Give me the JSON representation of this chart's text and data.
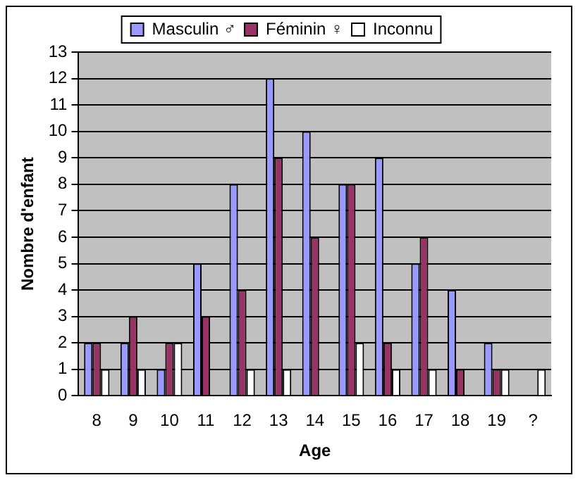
{
  "chart_data": {
    "type": "bar",
    "xlabel": "Age",
    "ylabel": "Nombre d'enfant",
    "categories": [
      "8",
      "9",
      "10",
      "11",
      "12",
      "13",
      "14",
      "15",
      "16",
      "17",
      "18",
      "19",
      "?"
    ],
    "series": [
      {
        "name": "Masculin ♂",
        "color": "#9999ff",
        "values": [
          2,
          2,
          1,
          5,
          8,
          12,
          10,
          8,
          9,
          5,
          4,
          2,
          0
        ]
      },
      {
        "name": "Féminin ♀",
        "color": "#993366",
        "values": [
          2,
          3,
          2,
          3,
          4,
          9,
          6,
          8,
          2,
          6,
          1,
          1,
          0
        ]
      },
      {
        "name": "Inconnu",
        "color": "#ffffff",
        "values": [
          1,
          1,
          2,
          0,
          1,
          1,
          0,
          2,
          1,
          1,
          0,
          1,
          1
        ]
      }
    ],
    "ylim": [
      0,
      13
    ],
    "yticks": [
      0,
      1,
      2,
      3,
      4,
      5,
      6,
      7,
      8,
      9,
      10,
      11,
      12,
      13
    ],
    "grid": "y",
    "legend": "top"
  }
}
